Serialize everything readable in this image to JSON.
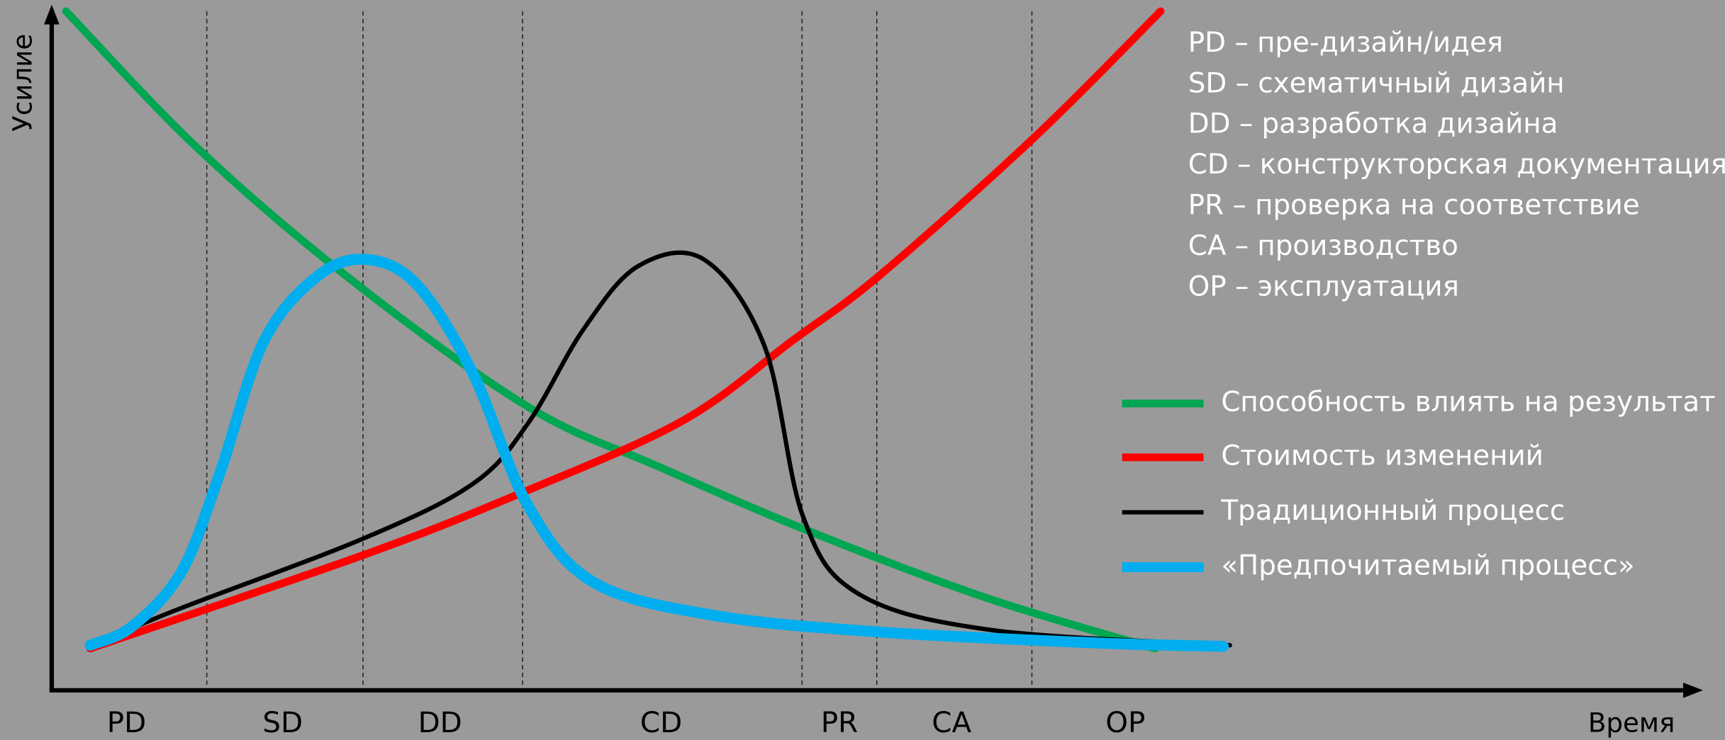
{
  "axes": {
    "y_label": "Усилие",
    "x_label": "Время"
  },
  "phases": [
    "PD",
    "SD",
    "DD",
    "CD",
    "PR",
    "CA",
    "OP"
  ],
  "definitions": [
    "PD – пре-дизайн/идея",
    "SD – схематичный дизайн",
    "DD – разработка дизайна",
    "CD – конструкторская документация",
    "PR – проверка на соответствие",
    "CA – производство",
    "OP – эксплуатация"
  ],
  "legend": [
    "Способность влиять на результат",
    "Стоимость изменений",
    "Традиционный процесс",
    "«Предпочитаемый процесс»"
  ]
}
